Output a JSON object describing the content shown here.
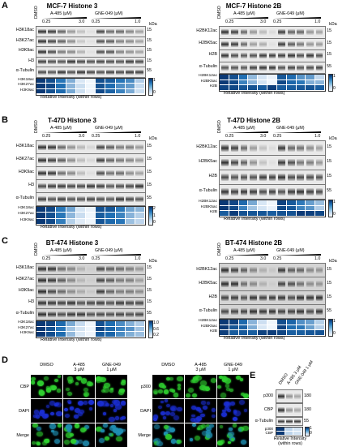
{
  "panels": {
    "A": {
      "letter": "A",
      "left_title": "MCF-7 Histone 3",
      "right_title": "MCF-7 Histone 2B"
    },
    "B": {
      "letter": "B",
      "left_title": "T-47D Histone 3",
      "right_title": "T-47D Histone 2B"
    },
    "C": {
      "letter": "C",
      "left_title": "BT-474 Histone 3",
      "right_title": "BT-474 Histone 2B"
    },
    "D": {
      "letter": "D"
    },
    "E": {
      "letter": "E"
    }
  },
  "treatments": {
    "dmso": "DMSO",
    "a485": "A-485 (μM)",
    "gne049": "GNE-049 (μM)",
    "low": "0.25",
    "high_a": "3.0",
    "high_g": "1.0",
    "kda": "kDa"
  },
  "h3_labels": [
    "H3K18ac",
    "H3K27ac",
    "H3K9ac",
    "H3",
    "α-Tubulin"
  ],
  "h2b_labels": [
    "H2BK12ac",
    "H2BK5ac",
    "H2B",
    "α-Tubulin"
  ],
  "h3_kda": [
    "15",
    "15",
    "15",
    "15",
    "55"
  ],
  "h2b_kda": [
    "15",
    "15",
    "15",
    "55"
  ],
  "h3_hm_rows": [
    "H3K18ac",
    "H3K27ac",
    "H3K9ac"
  ],
  "h2b_hm_rows": [
    "H2BK12ac",
    "H2BK5ac",
    "H2B"
  ],
  "hm_caption": "Relative Intensity (within rows)",
  "scales": {
    "A_left": [
      "1",
      "0"
    ],
    "A_right": [
      "1",
      "0"
    ],
    "B_left": [
      "2",
      "1",
      "0"
    ],
    "B_right": [
      "1",
      "0"
    ],
    "C_left": [
      "1.0",
      "0.6",
      "0.2"
    ],
    "C_right": [
      "1",
      "0"
    ]
  },
  "D": {
    "conditions": [
      "DMSO",
      "A-485\n3 μM",
      "GNE-049\n1 μM"
    ],
    "left_rows": [
      "CBP",
      "DAPI",
      "Merge"
    ],
    "right_rows": [
      "p300",
      "DAPI",
      "Merge"
    ]
  },
  "E": {
    "lanes": [
      "DMSO",
      "A-485 3 μM",
      "GNE-049 1 μM"
    ],
    "labels": [
      "p300",
      "CBP",
      "α-Tubulin"
    ],
    "kda": [
      "180",
      "180",
      "55"
    ],
    "hm_rows": [
      "p300",
      "CBP"
    ],
    "scale": [
      "1",
      "0"
    ],
    "caption": "Relative Intensity\n(within rows)"
  },
  "colors": {
    "heat_dark": "#08306b",
    "heat_light": "#f7fbff",
    "cbp_green": "#2fd030",
    "dapi_blue": "#1b2fd6"
  }
}
